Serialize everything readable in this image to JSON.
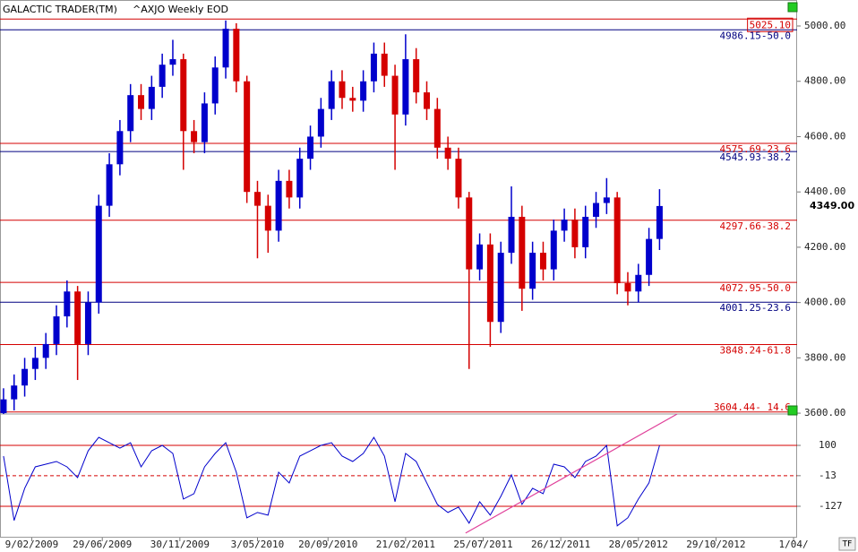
{
  "chart_data": [
    {
      "type": "candlestick",
      "title": "GALACTIC TRADER(TM)",
      "subtitle": "^AXJO Weekly EOD",
      "up_color": "#0000cc",
      "down_color": "#d40000",
      "x": [
        -8,
        -5,
        -2,
        1,
        4,
        7,
        10,
        13,
        16,
        19,
        22,
        25,
        28,
        31,
        34,
        37,
        40,
        43,
        46,
        49,
        52,
        55,
        58,
        61,
        64,
        67,
        70,
        73,
        76,
        79,
        82,
        85,
        88,
        91,
        94,
        97,
        100,
        103,
        106,
        109,
        112,
        115,
        118,
        121,
        124,
        127,
        130,
        133,
        136,
        139,
        142,
        145,
        148,
        151,
        154,
        157,
        160,
        163,
        166,
        169,
        172,
        175,
        178
      ],
      "open": [
        3600,
        3650,
        3700,
        3760,
        3800,
        3850,
        3950,
        4040,
        3850,
        4000,
        4350,
        4500,
        4620,
        4750,
        4700,
        4780,
        4860,
        4880,
        4620,
        4580,
        4720,
        4850,
        4990,
        4800,
        4400,
        4350,
        4260,
        4440,
        4380,
        4520,
        4600,
        4700,
        4800,
        4740,
        4730,
        4800,
        4900,
        4820,
        4680,
        4880,
        4760,
        4700,
        4560,
        4520,
        4380,
        4120,
        4210,
        3930,
        4180,
        4310,
        4050,
        4180,
        4120,
        4260,
        4300,
        4200,
        4310,
        4360,
        4380,
        4070,
        4040,
        4100,
        4230
      ],
      "high": [
        3690,
        3740,
        3800,
        3840,
        3890,
        3990,
        4080,
        4060,
        4040,
        4390,
        4540,
        4660,
        4790,
        4790,
        4820,
        4900,
        4950,
        4900,
        4660,
        4760,
        4890,
        5020,
        5010,
        4820,
        4440,
        4390,
        4480,
        4480,
        4560,
        4640,
        4740,
        4840,
        4840,
        4780,
        4840,
        4940,
        4940,
        4860,
        4970,
        4920,
        4800,
        4740,
        4600,
        4560,
        4400,
        4250,
        4250,
        4220,
        4420,
        4350,
        4220,
        4220,
        4300,
        4340,
        4340,
        4350,
        4400,
        4450,
        4400,
        4110,
        4140,
        4270,
        4410
      ],
      "low": [
        3560,
        3610,
        3660,
        3720,
        3760,
        3810,
        3910,
        3720,
        3810,
        3960,
        4310,
        4460,
        4580,
        4660,
        4660,
        4740,
        4820,
        4480,
        4540,
        4540,
        4680,
        4810,
        4760,
        4360,
        4160,
        4180,
        4220,
        4340,
        4340,
        4480,
        4560,
        4660,
        4700,
        4690,
        4690,
        4760,
        4780,
        4480,
        4640,
        4720,
        4660,
        4520,
        4480,
        4340,
        3760,
        4080,
        3840,
        3890,
        4140,
        3970,
        4010,
        4080,
        4080,
        4220,
        4160,
        4160,
        4270,
        4320,
        4030,
        3990,
        4000,
        4060,
        4190
      ],
      "close": [
        3650,
        3700,
        3760,
        3800,
        3850,
        3950,
        4040,
        3850,
        4000,
        4350,
        4500,
        4620,
        4750,
        4700,
        4780,
        4860,
        4880,
        4620,
        4580,
        4720,
        4850,
        4990,
        4800,
        4400,
        4350,
        4260,
        4440,
        4380,
        4520,
        4600,
        4700,
        4800,
        4740,
        4730,
        4800,
        4900,
        4820,
        4680,
        4880,
        4760,
        4700,
        4560,
        4520,
        4380,
        4120,
        4210,
        3930,
        4180,
        4310,
        4050,
        4180,
        4120,
        4260,
        4300,
        4200,
        4310,
        4360,
        4380,
        4070,
        4040,
        4100,
        4230,
        4349
      ],
      "last_price_label": "4349.00",
      "ylim": [
        3597,
        5094
      ],
      "yticks": [
        {
          "value": 5000,
          "label": "5000.00"
        },
        {
          "value": 4800,
          "label": "4800.00"
        },
        {
          "value": 4600,
          "label": "4600.00"
        },
        {
          "value": 4400,
          "label": "4400.00"
        },
        {
          "value": 4200,
          "label": "4200.00"
        },
        {
          "value": 4000,
          "label": "4000.00"
        },
        {
          "value": 3800,
          "label": "3800.00"
        },
        {
          "value": 3600,
          "label": "3600.00"
        }
      ],
      "levels": [
        {
          "value": 5025.1,
          "label": "5025.10",
          "color": "#d40000"
        },
        {
          "value": 4986.15,
          "label": "4986.15-50.0",
          "color": "#000080"
        },
        {
          "value": 4575.69,
          "label": "4575.69-23.6",
          "color": "#d40000"
        },
        {
          "value": 4545.93,
          "label": "4545.93-38.2",
          "color": "#000080"
        },
        {
          "value": 4297.66,
          "label": "4297.66-38.2",
          "color": "#d40000"
        },
        {
          "value": 4072.95,
          "label": "4072.95-50.0",
          "color": "#d40000"
        },
        {
          "value": 4001.25,
          "label": "4001.25-23.6",
          "color": "#000080"
        },
        {
          "value": 3848.24,
          "label": "3848.24-61.8",
          "color": "#d40000"
        },
        {
          "value": 3604.44,
          "label": "3604.44- 14.6",
          "color": "#d40000"
        }
      ]
    },
    {
      "type": "line",
      "color": "#0000cc",
      "x": [
        -8,
        -5,
        -2,
        1,
        4,
        7,
        10,
        13,
        16,
        19,
        22,
        25,
        28,
        31,
        34,
        37,
        40,
        43,
        46,
        49,
        52,
        55,
        58,
        61,
        64,
        67,
        70,
        73,
        76,
        79,
        82,
        85,
        88,
        91,
        94,
        97,
        100,
        103,
        106,
        109,
        112,
        115,
        118,
        121,
        124,
        127,
        130,
        133,
        136,
        139,
        142,
        145,
        148,
        151,
        154,
        157,
        160,
        163,
        166,
        169,
        172,
        175,
        178
      ],
      "values": [
        60,
        -180,
        -60,
        20,
        30,
        40,
        20,
        -20,
        80,
        130,
        110,
        90,
        110,
        20,
        80,
        100,
        70,
        -100,
        -80,
        20,
        70,
        110,
        0,
        -170,
        -150,
        -160,
        0,
        -40,
        60,
        80,
        100,
        110,
        60,
        40,
        70,
        130,
        60,
        -110,
        70,
        40,
        -40,
        -120,
        -150,
        -130,
        -190,
        -110,
        -160,
        -90,
        -10,
        -120,
        -60,
        -80,
        30,
        20,
        -20,
        40,
        60,
        100,
        -200,
        -170,
        -100,
        -40,
        100
      ],
      "ylim": [
        -244,
        217
      ],
      "yticks": [
        100,
        -13,
        -127
      ],
      "tick_line_color": "#d40000",
      "tick_line_styles": [
        "solid",
        "dashed",
        "solid"
      ],
      "trendline": {
        "x": [
          123,
          183
        ],
        "y": [
          -227,
          217
        ],
        "color": "#e0409a"
      },
      "xlim": [
        -9,
        217
      ],
      "xticks": [
        {
          "value": 0,
          "label": "9/02/2009"
        },
        {
          "value": 20,
          "label": "29/06/2009"
        },
        {
          "value": 42,
          "label": "30/11/2009"
        },
        {
          "value": 64,
          "label": "3/05/2010"
        },
        {
          "value": 84,
          "label": "20/09/2010"
        },
        {
          "value": 106,
          "label": "21/02/2011"
        },
        {
          "value": 128,
          "label": "25/07/2011"
        },
        {
          "value": 150,
          "label": "26/12/2011"
        },
        {
          "value": 172,
          "label": "28/05/2012"
        },
        {
          "value": 194,
          "label": "29/10/2012"
        },
        {
          "value": 216,
          "label": "1/04/"
        }
      ]
    }
  ],
  "toolbar": {
    "tf": "TF"
  }
}
